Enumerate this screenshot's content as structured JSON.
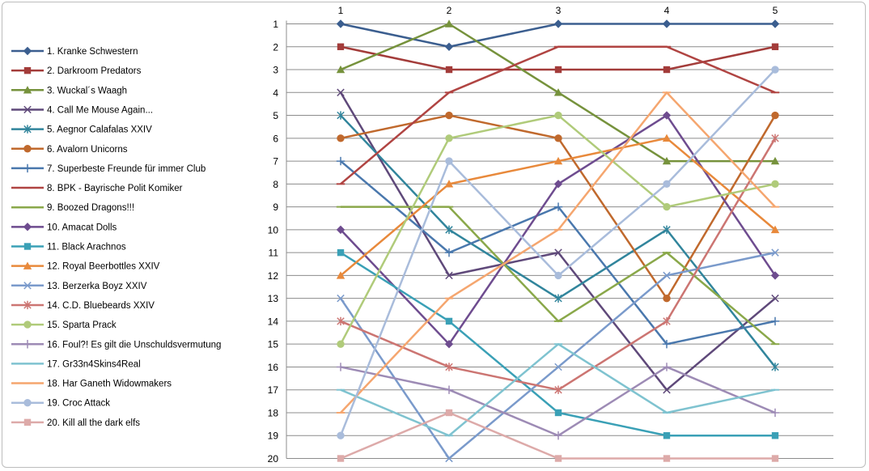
{
  "chart_data": {
    "type": "line",
    "x": [
      1,
      2,
      3,
      4,
      5
    ],
    "ylim": [
      1,
      20
    ],
    "y_reversed": true,
    "x_axis_position": "top",
    "grid": "horizontal",
    "legend_position": "left",
    "series": [
      {
        "name": "1. Kranke Schwestern",
        "color": "#3b5e8f",
        "marker": "diamond",
        "values": [
          1,
          2,
          1,
          1,
          1
        ]
      },
      {
        "name": "2. Darkroom Predators",
        "color": "#a33c3a",
        "marker": "square",
        "values": [
          2,
          3,
          3,
          3,
          2
        ]
      },
      {
        "name": "3. Wuckal´s Waagh",
        "color": "#76923c",
        "marker": "triangle",
        "values": [
          3,
          1,
          4,
          7,
          7
        ]
      },
      {
        "name": "4. Call Me Mouse Again...",
        "color": "#5f497a",
        "marker": "x",
        "values": [
          4,
          12,
          11,
          17,
          13
        ]
      },
      {
        "name": "5. Aegnor Calafalas XXIV",
        "color": "#31859c",
        "marker": "star",
        "values": [
          5,
          10,
          13,
          10,
          16
        ]
      },
      {
        "name": "6. Avalorn Unicorns",
        "color": "#c0692d",
        "marker": "circle",
        "values": [
          6,
          5,
          6,
          13,
          5
        ]
      },
      {
        "name": "7. Superbeste Freunde für immer Club",
        "color": "#4a78ad",
        "marker": "plus",
        "values": [
          7,
          11,
          9,
          15,
          14
        ]
      },
      {
        "name": "8. BPK - Bayrische Polit Komiker",
        "color": "#b04442",
        "marker": "dash",
        "values": [
          8,
          4,
          2,
          2,
          4
        ]
      },
      {
        "name": "9. Boozed Dragons!!!",
        "color": "#8aa84a",
        "marker": "dash",
        "values": [
          9,
          9,
          14,
          11,
          15
        ]
      },
      {
        "name": "10. Amacat Dolls",
        "color": "#6e4c8f",
        "marker": "diamond",
        "values": [
          10,
          15,
          8,
          5,
          12
        ]
      },
      {
        "name": "11. Black Arachnos",
        "color": "#3aa0b6",
        "marker": "square",
        "values": [
          11,
          14,
          18,
          19,
          19
        ]
      },
      {
        "name": "12. Royal Beerbottles XXIV",
        "color": "#e8893b",
        "marker": "triangle",
        "values": [
          12,
          8,
          7,
          6,
          10
        ]
      },
      {
        "name": "13. Berzerka Boyz XXIV",
        "color": "#7a9acb",
        "marker": "x",
        "values": [
          13,
          20,
          16,
          12,
          11
        ]
      },
      {
        "name": "14. C.D. Bluebeards XXIV",
        "color": "#cc7572",
        "marker": "star",
        "values": [
          14,
          16,
          17,
          14,
          6
        ]
      },
      {
        "name": "15. Sparta Prack",
        "color": "#b0cb7a",
        "marker": "circle",
        "values": [
          15,
          6,
          5,
          9,
          8
        ]
      },
      {
        "name": "16. Foul?! Es gilt die Unschuldsvermutung",
        "color": "#9d8bb5",
        "marker": "plus",
        "values": [
          16,
          17,
          19,
          16,
          18
        ]
      },
      {
        "name": "17. Gr33n4Skins4Real",
        "color": "#7fc3d0",
        "marker": "dash",
        "values": [
          17,
          19,
          15,
          18,
          17
        ]
      },
      {
        "name": "18. Har Ganeth Widowmakers",
        "color": "#f5a66f",
        "marker": "dash",
        "values": [
          18,
          13,
          10,
          4,
          9
        ]
      },
      {
        "name": "19. Croc Attack",
        "color": "#a9bcdb",
        "marker": "circle",
        "values": [
          19,
          7,
          12,
          8,
          3
        ]
      },
      {
        "name": "20. Kill all the dark elfs",
        "color": "#ddaaa9",
        "marker": "square",
        "values": [
          20,
          18,
          20,
          20,
          20
        ]
      }
    ]
  }
}
